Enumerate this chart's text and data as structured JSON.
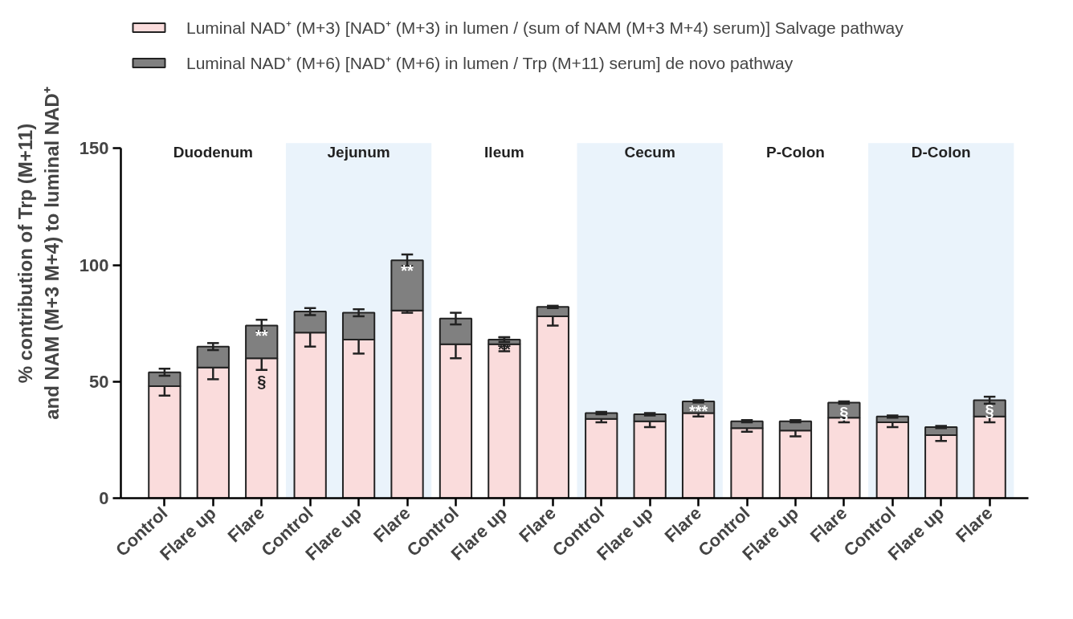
{
  "chart_data": {
    "type": "bar",
    "stacked": true,
    "categories": [
      "Control",
      "Flare up",
      "Flare",
      "Control",
      "Flare up",
      "Flare",
      "Control",
      "Flare up",
      "Flare",
      "Control",
      "Flare up",
      "Flare",
      "Control",
      "Flare up",
      "Flare",
      "Control",
      "Flare up",
      "Flare"
    ],
    "series": [
      {
        "name": "Luminal NAD⁺ (M+3) [NAD⁺ (M+3) in lumen / (sum of NAM (M+3 M+4) serum)] Salvage pathway",
        "color": "#fadcdc",
        "values": [
          48,
          56,
          60,
          71,
          68,
          80.5,
          66,
          66,
          78,
          34,
          33,
          36.5,
          30,
          29,
          34.5,
          32.5,
          27,
          35
        ],
        "errors": [
          4,
          5,
          5,
          6,
          6,
          1,
          6,
          3,
          4,
          1.5,
          2.5,
          1.5,
          1.5,
          2.5,
          2,
          2,
          2.5,
          2.5
        ],
        "value_labels": [
          null,
          null,
          "§",
          null,
          null,
          null,
          null,
          null,
          null,
          null,
          null,
          null,
          null,
          null,
          null,
          null,
          null,
          null
        ]
      },
      {
        "name": "Luminal NAD⁺ (M+6) [NAD⁺ (M+6) in lumen / Trp (M+11) serum] de novo pathway",
        "color": "#808080",
        "values": [
          6,
          9,
          14,
          9,
          11.5,
          21.5,
          11,
          2,
          4,
          2.5,
          3,
          5,
          3,
          4,
          6.5,
          2.5,
          3.5,
          7
        ],
        "errors": [
          1.5,
          1.5,
          2.5,
          1.5,
          1.5,
          2.5,
          2.5,
          1,
          0.5,
          0.5,
          0.5,
          0.5,
          0.5,
          0.5,
          0.5,
          0.5,
          0.5,
          1.5
        ],
        "value_labels": [
          null,
          null,
          "**",
          null,
          null,
          "**",
          null,
          "**",
          null,
          null,
          null,
          "***",
          null,
          null,
          "§",
          null,
          null,
          "§"
        ]
      }
    ],
    "ylabel": "% contribution of Trp (M+11)\nand NAM (M+3 M+4) to luminal NAD⁺",
    "ylim": [
      0,
      150
    ],
    "yticks": [
      0,
      50,
      100,
      150
    ],
    "annotations": [
      "Duodenum",
      "Jejunum",
      "Ileum",
      "Cecum",
      "P-Colon",
      "D-Colon"
    ],
    "legend": "top left",
    "grid": false
  }
}
